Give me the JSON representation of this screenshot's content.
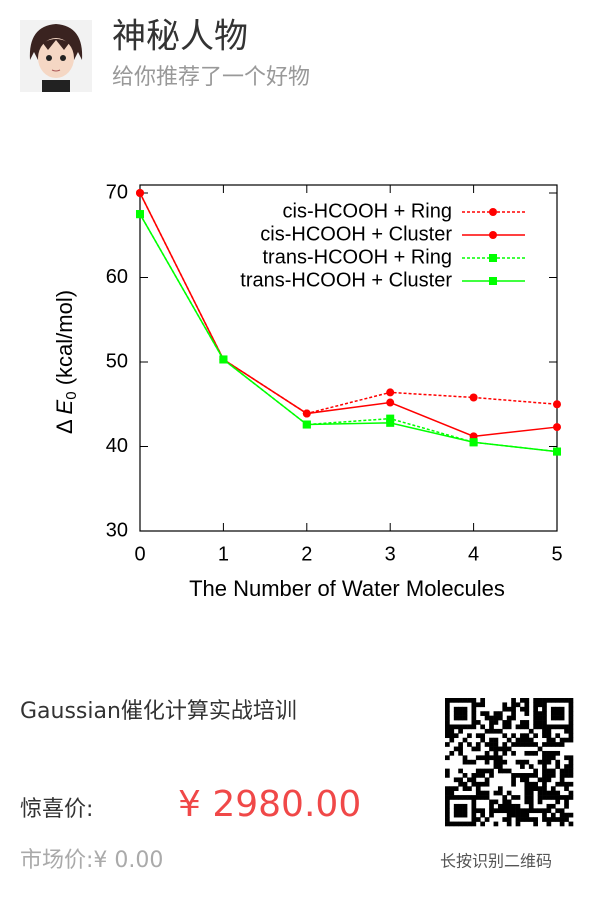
{
  "header": {
    "name": "神秘人物",
    "subtitle": "给你推荐了一个好物"
  },
  "chart_data": {
    "type": "line",
    "x_label": "The Number of Water Molecules",
    "y_label": {
      "prefix": "Δ",
      "symbol": "E",
      "subscript": "0",
      "unit": "(kcal/mol)"
    },
    "x": [
      0,
      1,
      2,
      3,
      4,
      5
    ],
    "xlim": [
      0,
      5
    ],
    "xticks": [
      0,
      1,
      2,
      3,
      4,
      5
    ],
    "ylim": [
      30,
      70
    ],
    "yticks": [
      30,
      40,
      50,
      60,
      70
    ],
    "legend": "upper right",
    "series": [
      {
        "name": "cis-HCOOH + Ring",
        "color": "#ff0000",
        "dashed": true,
        "marker": "circle",
        "values": [
          70,
          50.3,
          43.9,
          46.4,
          45.8,
          45.0
        ]
      },
      {
        "name": "cis-HCOOH + Cluster",
        "color": "#ff0000",
        "dashed": false,
        "marker": "circle",
        "values": [
          70,
          50.3,
          43.9,
          45.2,
          41.2,
          42.3
        ]
      },
      {
        "name": "trans-HCOOH + Ring",
        "color": "#00ff00",
        "dashed": true,
        "marker": "square",
        "values": [
          67.5,
          50.3,
          42.6,
          43.3,
          40.5,
          39.4
        ]
      },
      {
        "name": "trans-HCOOH + Cluster",
        "color": "#00ff00",
        "dashed": false,
        "marker": "square",
        "values": [
          67.5,
          50.3,
          42.6,
          42.8,
          40.5,
          39.4
        ]
      }
    ]
  },
  "product": {
    "title": "Gaussian催化计算实战培训",
    "price_label": "惊喜价:",
    "price": "¥ 2980.00",
    "market_label": "市场价:",
    "market_price": "¥ 0.00",
    "qr_caption": "长按识别二维码"
  }
}
